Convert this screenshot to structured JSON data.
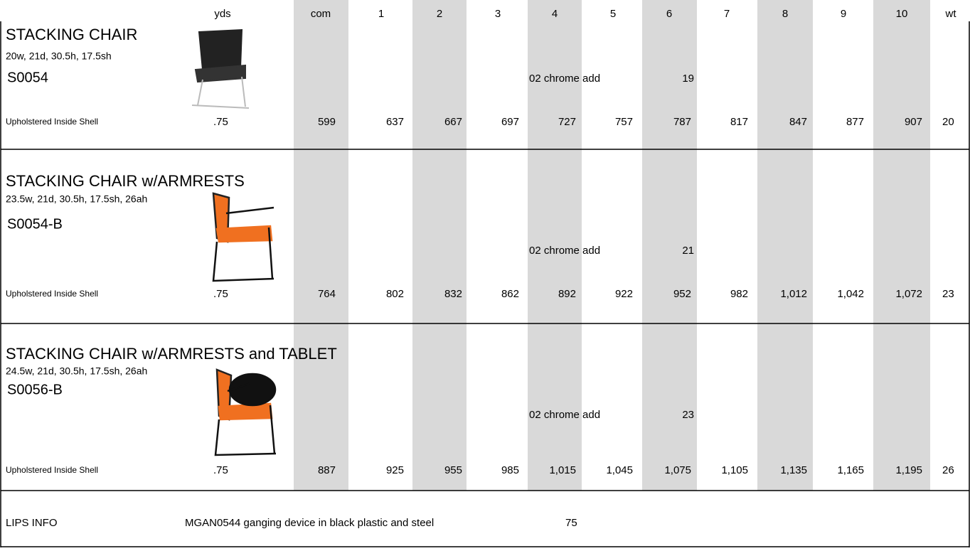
{
  "header": {
    "columns": [
      "yds",
      "com",
      "1",
      "2",
      "3",
      "4",
      "5",
      "6",
      "7",
      "8",
      "9",
      "10",
      "wt"
    ]
  },
  "products": [
    {
      "title": "STACKING CHAIR",
      "dims": "20w, 21d, 30.5h, 17.5sh",
      "code": "S0054",
      "chrome_label": "02 chrome add",
      "chrome_add": "19",
      "row": {
        "label": "Upholstered Inside Shell",
        "yds": ".75",
        "prices": [
          "599",
          "637",
          "667",
          "697",
          "727",
          "757",
          "787",
          "817",
          "847",
          "877",
          "907"
        ],
        "wt": "20"
      }
    },
    {
      "title": "STACKING CHAIR w/ARMRESTS",
      "dims": "23.5w, 21d, 30.5h, 17.5sh, 26ah",
      "code": "S0054-B",
      "chrome_label": "02 chrome add",
      "chrome_add": "21",
      "row": {
        "label": "Upholstered Inside Shell",
        "yds": ".75",
        "prices": [
          "764",
          "802",
          "832",
          "862",
          "892",
          "922",
          "952",
          "982",
          "1,012",
          "1,042",
          "1,072"
        ],
        "wt": "23"
      }
    },
    {
      "title": "STACKING CHAIR w/ARMRESTS and TABLET",
      "dims": "24.5w, 21d, 30.5h, 17.5sh, 26ah",
      "code": "S0056-B",
      "chrome_label": "02 chrome add",
      "chrome_add": "23",
      "row": {
        "label": "Upholstered Inside Shell",
        "yds": ".75",
        "prices": [
          "887",
          "925",
          "955",
          "985",
          "1,015",
          "1,045",
          "1,075",
          "1,105",
          "1,135",
          "1,165",
          "1,195"
        ],
        "wt": "26"
      }
    }
  ],
  "footer": {
    "label": "LIPS INFO",
    "description": "MGAN0544 ganging device in black plastic and steel",
    "price": "75"
  }
}
